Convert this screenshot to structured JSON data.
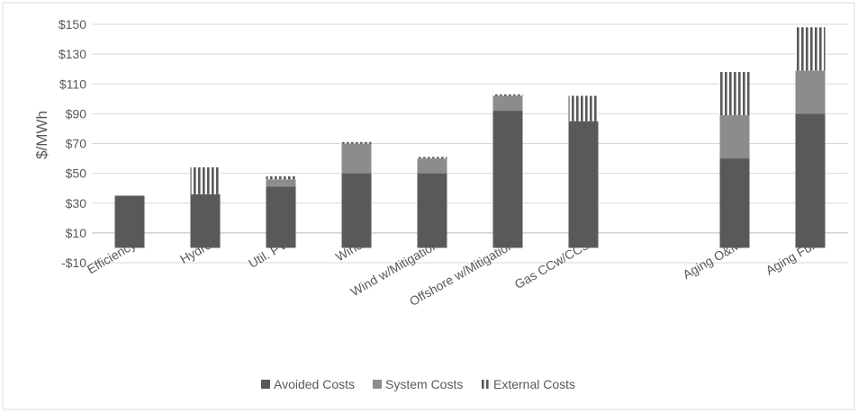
{
  "chart_data": {
    "type": "bar",
    "stacked": true,
    "title": "",
    "xlabel": "",
    "ylabel": "$/MWh",
    "ylim": [
      -10,
      150
    ],
    "y_ticks": [
      150,
      130,
      110,
      90,
      70,
      50,
      30,
      10,
      -10
    ],
    "y_tick_labels": [
      "$150",
      "$130",
      "$110",
      "$90",
      "$70",
      "$50",
      "$30",
      "$10",
      "-$10"
    ],
    "grid": true,
    "legend_position": "bottom",
    "categories": [
      "Efficiency",
      "Hydro",
      "Util. PV",
      "Wind",
      "Wind w/Mitigation",
      "Offshore w/Mitigation",
      "Gas CCw/CCS",
      "",
      "Aging O&M",
      "Aging Full"
    ],
    "series": [
      {
        "name": "Avoided Costs",
        "color": "#595959",
        "values": [
          35,
          36,
          41,
          50,
          50,
          92,
          85,
          null,
          60,
          90
        ]
      },
      {
        "name": "System Costs",
        "color": "#8c8c8c",
        "values": [
          0,
          0,
          5,
          20,
          10,
          10,
          0,
          null,
          29,
          29
        ]
      },
      {
        "name": "External Costs",
        "color": "#595959",
        "pattern": "vertical-stripes",
        "values": [
          0,
          18,
          2,
          1,
          1,
          1,
          17,
          null,
          29,
          29
        ]
      }
    ]
  }
}
